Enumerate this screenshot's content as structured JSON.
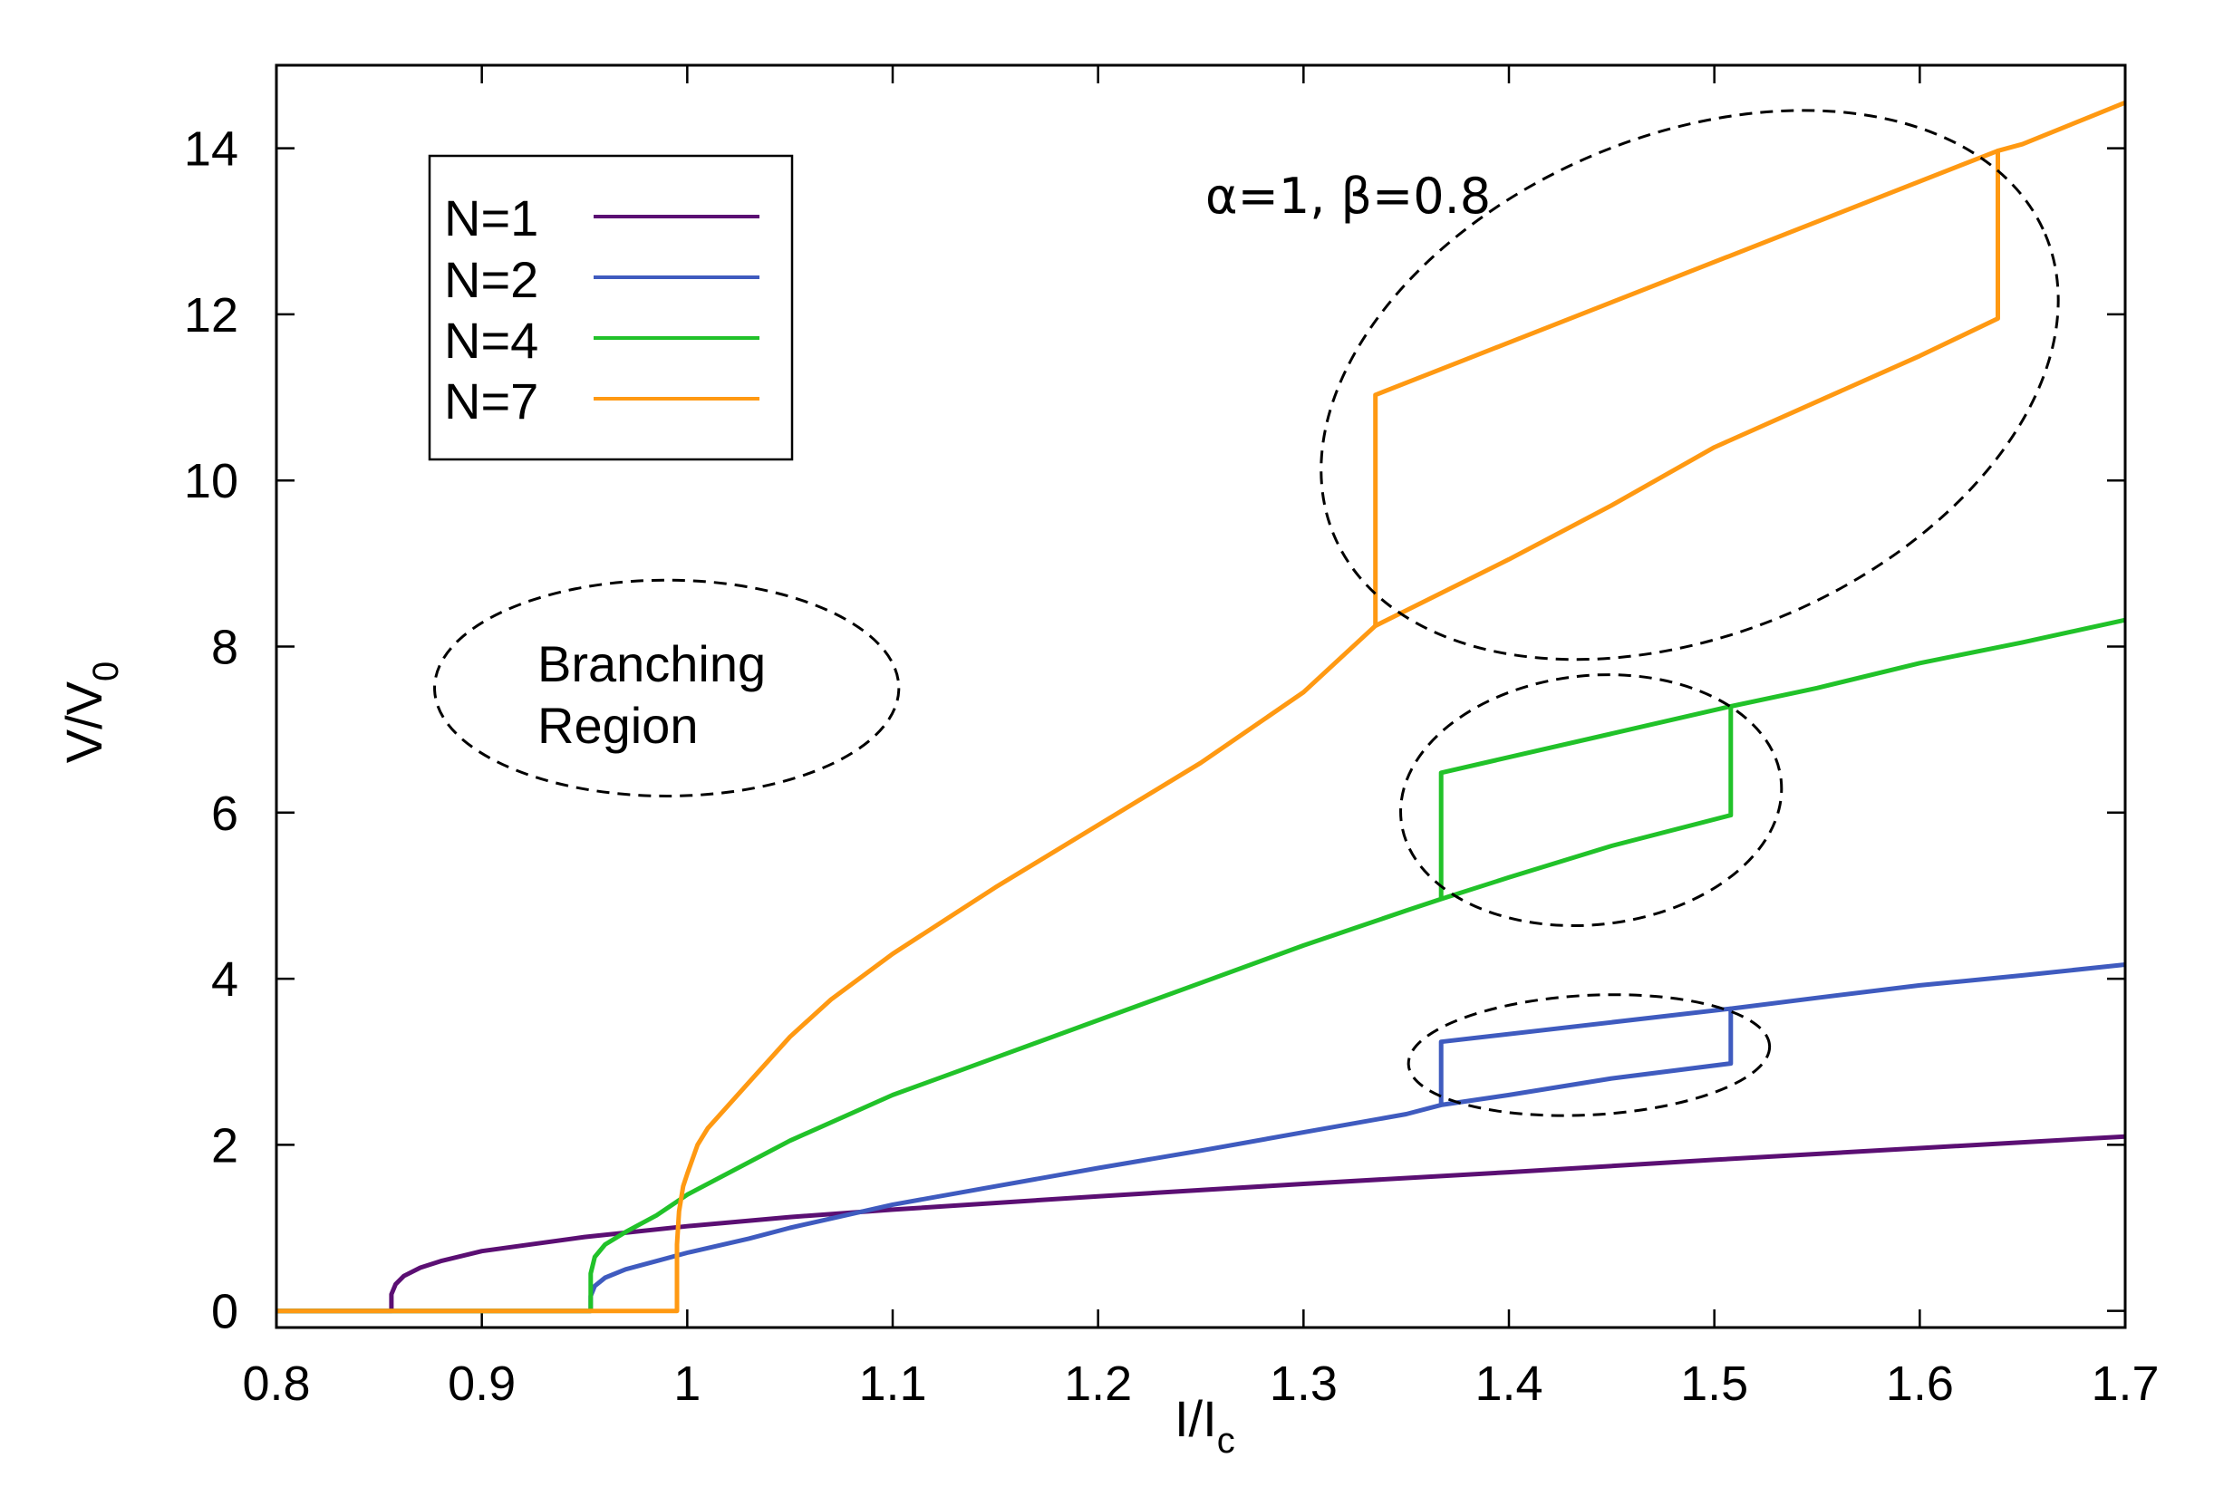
{
  "chart_data": {
    "type": "line",
    "xlabel": "I/I",
    "xlabel_sub": "c",
    "ylabel": "V/V",
    "ylabel_sub": "0",
    "xlim": [
      0.8,
      1.7
    ],
    "ylim": [
      -0.2,
      15
    ],
    "xticks": [
      0.8,
      0.9,
      1,
      1.1,
      1.2,
      1.3,
      1.4,
      1.5,
      1.6,
      1.7
    ],
    "xtick_labels": [
      "0.8",
      "0.9",
      "1",
      "1.1",
      "1.2",
      "1.3",
      "1.4",
      "1.5",
      "1.6",
      "1.7"
    ],
    "yticks": [
      0,
      2,
      4,
      6,
      8,
      10,
      12,
      14
    ],
    "ytick_labels": [
      "0",
      "2",
      "4",
      "6",
      "8",
      "10",
      "12",
      "14"
    ],
    "parameters_annotation": "α=1, β=0.8",
    "region_annotation": [
      "Branching",
      "Region"
    ],
    "legend_position": "top-left",
    "series": [
      {
        "name": "N=1",
        "color": "#5b0f73",
        "points": [
          [
            0.8,
            0
          ],
          [
            0.856,
            0
          ],
          [
            0.856,
            0.2
          ],
          [
            0.858,
            0.32
          ],
          [
            0.862,
            0.42
          ],
          [
            0.87,
            0.52
          ],
          [
            0.88,
            0.6
          ],
          [
            0.9,
            0.72
          ],
          [
            0.95,
            0.89
          ],
          [
            1.0,
            1.02
          ],
          [
            1.05,
            1.13
          ],
          [
            1.1,
            1.22
          ],
          [
            1.2,
            1.38
          ],
          [
            1.3,
            1.53
          ],
          [
            1.4,
            1.67
          ],
          [
            1.5,
            1.82
          ],
          [
            1.6,
            1.96
          ],
          [
            1.7,
            2.1
          ]
        ]
      },
      {
        "name": "N=2",
        "color": "#3f5bbf",
        "points": [
          [
            0.8,
            0
          ],
          [
            0.953,
            0
          ],
          [
            0.953,
            0.18
          ],
          [
            0.955,
            0.3
          ],
          [
            0.96,
            0.4
          ],
          [
            0.97,
            0.5
          ],
          [
            0.985,
            0.6
          ],
          [
            1.0,
            0.7
          ],
          [
            1.03,
            0.87
          ],
          [
            1.05,
            1.0
          ],
          [
            1.1,
            1.28
          ],
          [
            1.15,
            1.5
          ],
          [
            1.2,
            1.72
          ],
          [
            1.25,
            1.93
          ],
          [
            1.3,
            2.15
          ],
          [
            1.35,
            2.37
          ],
          [
            1.367,
            2.48
          ],
          [
            1.4,
            2.6
          ],
          [
            1.45,
            2.8
          ],
          [
            1.508,
            2.98
          ],
          [
            1.508,
            3.64
          ],
          [
            1.55,
            3.77
          ],
          [
            1.6,
            3.92
          ],
          [
            1.65,
            4.04
          ],
          [
            1.7,
            4.17
          ]
        ],
        "hysteresis_upper": [
          [
            1.367,
            2.48
          ],
          [
            1.367,
            3.24
          ],
          [
            1.508,
            3.64
          ]
        ]
      },
      {
        "name": "N=4",
        "color": "#21c229",
        "points": [
          [
            0.8,
            0
          ],
          [
            0.953,
            0
          ],
          [
            0.953,
            0.45
          ],
          [
            0.955,
            0.65
          ],
          [
            0.96,
            0.8
          ],
          [
            0.97,
            0.95
          ],
          [
            0.985,
            1.15
          ],
          [
            1.0,
            1.4
          ],
          [
            1.05,
            2.05
          ],
          [
            1.1,
            2.6
          ],
          [
            1.15,
            3.05
          ],
          [
            1.2,
            3.5
          ],
          [
            1.25,
            3.95
          ],
          [
            1.3,
            4.4
          ],
          [
            1.35,
            4.82
          ],
          [
            1.367,
            4.96
          ],
          [
            1.4,
            5.22
          ],
          [
            1.45,
            5.6
          ],
          [
            1.508,
            5.97
          ],
          [
            1.508,
            7.28
          ],
          [
            1.55,
            7.5
          ],
          [
            1.6,
            7.8
          ],
          [
            1.65,
            8.05
          ],
          [
            1.7,
            8.32
          ]
        ],
        "hysteresis_upper": [
          [
            1.367,
            4.96
          ],
          [
            1.367,
            6.48
          ],
          [
            1.508,
            7.28
          ]
        ]
      },
      {
        "name": "N=7",
        "color": "#ff9912",
        "points": [
          [
            0.8,
            0
          ],
          [
            0.995,
            0
          ],
          [
            0.995,
            0.8
          ],
          [
            0.996,
            1.2
          ],
          [
            0.998,
            1.5
          ],
          [
            1.0,
            1.65
          ],
          [
            1.005,
            2.0
          ],
          [
            1.01,
            2.2
          ],
          [
            1.03,
            2.75
          ],
          [
            1.05,
            3.3
          ],
          [
            1.07,
            3.75
          ],
          [
            1.1,
            4.3
          ],
          [
            1.15,
            5.1
          ],
          [
            1.2,
            5.85
          ],
          [
            1.25,
            6.6
          ],
          [
            1.3,
            7.45
          ],
          [
            1.335,
            8.25
          ],
          [
            1.4,
            9.05
          ],
          [
            1.45,
            9.7
          ],
          [
            1.5,
            10.4
          ],
          [
            1.55,
            10.95
          ],
          [
            1.6,
            11.5
          ],
          [
            1.638,
            11.95
          ],
          [
            1.638,
            13.97
          ],
          [
            1.65,
            14.05
          ],
          [
            1.7,
            14.55
          ]
        ],
        "hysteresis_upper": [
          [
            1.335,
            8.25
          ],
          [
            1.335,
            11.03
          ],
          [
            1.638,
            13.97
          ]
        ]
      }
    ],
    "dashed_ellipses": [
      {
        "name": "branching-region",
        "cx": 0.99,
        "cy": 7.5,
        "rx": 0.113,
        "ry": 1.3
      },
      {
        "name": "n7-hysteresis",
        "cx": 1.488,
        "cy": 11.15,
        "rx": 0.188,
        "ry": 3.0,
        "angle_deg": -23
      },
      {
        "name": "n4-hysteresis",
        "cx": 1.44,
        "cy": 6.15,
        "rx": 0.093,
        "ry": 1.5,
        "angle_deg": -6
      },
      {
        "name": "n2-hysteresis",
        "cx": 1.439,
        "cy": 3.08,
        "rx": 0.088,
        "ry": 0.72,
        "angle_deg": -3
      }
    ]
  }
}
